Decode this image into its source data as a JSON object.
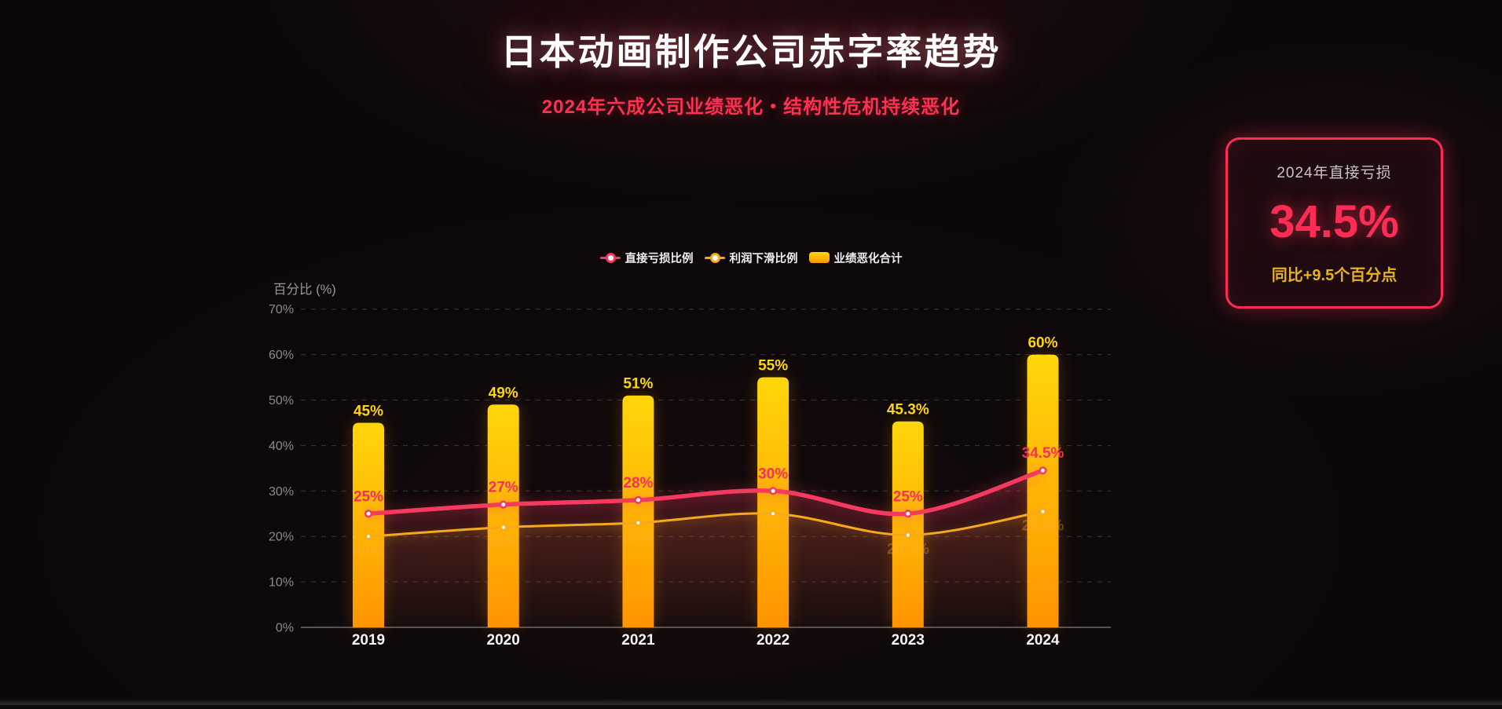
{
  "page": {
    "title": "日本动画制作公司赤字率趋势",
    "subtitle": "2024年六成公司业绩恶化・结构性危机持续恶化"
  },
  "stat_card": {
    "label": "2024年直接亏损",
    "value": "34.5%",
    "delta": "同比+9.5个百分点"
  },
  "chart_data": {
    "type": "combo-bar-line",
    "title": "",
    "xlabel": "",
    "ylabel": "百分比 (%)",
    "ylim": [
      0,
      70
    ],
    "ytick_labels": [
      "0%",
      "10%",
      "20%",
      "30%",
      "40%",
      "50%",
      "60%",
      "70%"
    ],
    "grid": "horizontal-dashed",
    "legend_position": "top-center",
    "categories": [
      "2019",
      "2020",
      "2021",
      "2022",
      "2023",
      "2024"
    ],
    "series": [
      {
        "name": "直接亏损比例",
        "type": "line",
        "color": "#f43a5f",
        "values": [
          25,
          27,
          28,
          30,
          25,
          34.5
        ],
        "point_labels": [
          "25%",
          "27%",
          "28%",
          "30%",
          "25%",
          "34.5%"
        ]
      },
      {
        "name": "利润下滑比例",
        "type": "line",
        "color": "#f7a91c",
        "values": [
          20,
          22,
          23,
          25,
          20.3,
          25.5
        ],
        "point_labels": [
          "20%",
          "22%",
          "23%",
          "25%",
          "20.3%",
          "25.5%"
        ]
      },
      {
        "name": "业绩恶化合计",
        "type": "bar",
        "color_top": "#ffd60a",
        "color_bottom": "#ff9400",
        "label_color": "#ffd60a",
        "values": [
          45,
          49,
          51,
          55,
          45.3,
          60
        ],
        "point_labels": [
          "45%",
          "49%",
          "51%",
          "55%",
          "45.3%",
          "60%"
        ]
      }
    ]
  }
}
